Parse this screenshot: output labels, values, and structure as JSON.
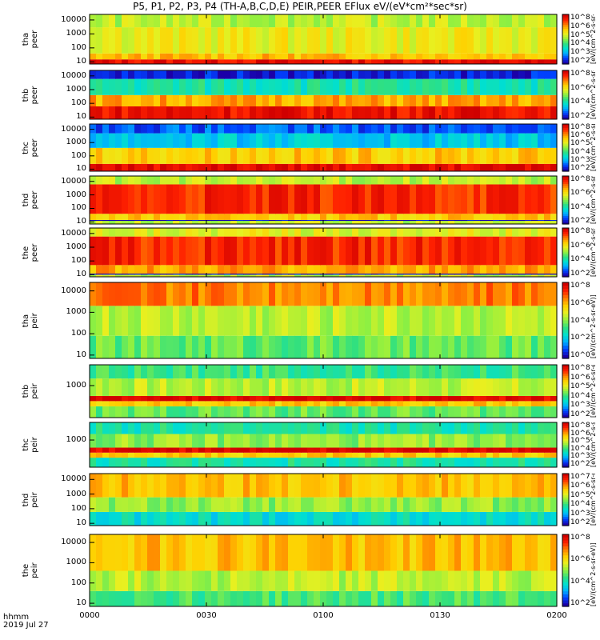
{
  "title": "P5, P1, P2, P3, P4 (TH-A,B,C,D,E) PEIR,PEER EFlux eV/(eV*cm²*sec*sr)",
  "time_axis": {
    "label": "hhmm",
    "date": "2019 Jul 27",
    "ticks": [
      "0000",
      "0030",
      "0100",
      "0130",
      "0200"
    ]
  },
  "colorbar_unit_label": "[eV/(cm^2-s-sr-eV)]",
  "colors": {
    "colormap": [
      "#1b00a8",
      "#0040ff",
      "#00b0ff",
      "#00e0d0",
      "#30e080",
      "#90f040",
      "#e8f020",
      "#ffd000",
      "#ff8000",
      "#ff2000",
      "#d00000"
    ]
  },
  "chart_data": [
    {
      "type": "heatmap",
      "probe": "tha",
      "species": "peer",
      "ylabel_line1": "tha",
      "ylabel_line2": "peer",
      "yticks": [
        "10",
        "100",
        "1000",
        "10000"
      ],
      "ylim_eV": [
        7,
        25000
      ],
      "y_scale": "log",
      "colorbar_ticks": [
        "10^8",
        "10^6",
        "10^5",
        "10^4",
        "10^3",
        "10^2"
      ],
      "description_bands_eV": [
        {
          "from": 7,
          "to": 15,
          "level": 0.95
        },
        {
          "from": 15,
          "to": 40,
          "level": 0.72
        },
        {
          "from": 40,
          "to": 3000,
          "level": 0.62
        },
        {
          "from": 3000,
          "to": 25000,
          "level": 0.55
        }
      ]
    },
    {
      "type": "heatmap",
      "probe": "thb",
      "species": "peer",
      "ylabel_line1": "thb",
      "ylabel_line2": "peer",
      "yticks": [
        "10",
        "100",
        "1000",
        "10000"
      ],
      "ylim_eV": [
        7,
        25000
      ],
      "y_scale": "log",
      "colorbar_ticks": [
        "10^8",
        "10^6",
        "10^4",
        "10^2"
      ],
      "description_bands_eV": [
        {
          "from": 7,
          "to": 60,
          "level": 0.95
        },
        {
          "from": 60,
          "to": 400,
          "level": 0.75
        },
        {
          "from": 400,
          "to": 6000,
          "level": 0.35
        },
        {
          "from": 6000,
          "to": 25000,
          "level": 0.05
        }
      ]
    },
    {
      "type": "heatmap",
      "probe": "thc",
      "species": "peer",
      "ylabel_line1": "thc",
      "ylabel_line2": "peer",
      "yticks": [
        "10",
        "100",
        "1000",
        "10000"
      ],
      "ylim_eV": [
        7,
        25000
      ],
      "y_scale": "log",
      "colorbar_ticks": [
        "10^8",
        "10^6",
        "10^5",
        "10^4",
        "10^3",
        "10^2"
      ],
      "description_bands_eV": [
        {
          "from": 7,
          "to": 25,
          "level": 0.97
        },
        {
          "from": 25,
          "to": 400,
          "level": 0.7
        },
        {
          "from": 400,
          "to": 5000,
          "level": 0.25
        },
        {
          "from": 5000,
          "to": 25000,
          "level": 0.12
        }
      ]
    },
    {
      "type": "heatmap",
      "probe": "thd",
      "species": "peer",
      "ylabel_line1": "thd",
      "ylabel_line2": "peer",
      "yticks": [
        "10",
        "100",
        "1000",
        "10000"
      ],
      "ylim_eV": [
        7,
        25000
      ],
      "y_scale": "log",
      "colorbar_ticks": [
        "10^8",
        "10^6",
        "10^4",
        "10^2"
      ],
      "description_bands_eV": [
        {
          "from": 7,
          "to": 12,
          "level": 0.55
        },
        {
          "from": 12,
          "to": 14,
          "level": 0.0
        },
        {
          "from": 14,
          "to": 40,
          "level": 0.7
        },
        {
          "from": 40,
          "to": 6000,
          "level": 0.9
        },
        {
          "from": 6000,
          "to": 25000,
          "level": 0.55
        }
      ]
    },
    {
      "type": "heatmap",
      "probe": "the",
      "species": "peer",
      "ylabel_line1": "the",
      "ylabel_line2": "peer",
      "yticks": [
        "10",
        "100",
        "1000",
        "10000"
      ],
      "ylim_eV": [
        7,
        25000
      ],
      "y_scale": "log",
      "colorbar_ticks": [
        "10^8",
        "10^6",
        "10^4",
        "10^2"
      ],
      "description_bands_eV": [
        {
          "from": 7,
          "to": 10,
          "level": 0.55
        },
        {
          "from": 10,
          "to": 12,
          "level": 0.0
        },
        {
          "from": 12,
          "to": 50,
          "level": 0.75
        },
        {
          "from": 50,
          "to": 6000,
          "level": 0.9
        },
        {
          "from": 6000,
          "to": 25000,
          "level": 0.6
        }
      ]
    },
    {
      "type": "heatmap",
      "probe": "tha",
      "species": "peir",
      "ylabel_line1": "tha",
      "ylabel_line2": "peir",
      "yticks": [
        "10",
        "100",
        "1000",
        "10000"
      ],
      "ylim_eV": [
        7,
        25000
      ],
      "y_scale": "log",
      "colorbar_ticks": [
        "10^8",
        "10^6",
        "10^4",
        "10^2",
        "10^0"
      ],
      "description_bands_eV": [
        {
          "from": 7,
          "to": 80,
          "level": 0.45
        },
        {
          "from": 80,
          "to": 2000,
          "level": 0.55
        },
        {
          "from": 2000,
          "to": 25000,
          "level": 0.8
        }
      ]
    },
    {
      "type": "heatmap",
      "probe": "thb",
      "species": "peir",
      "ylabel_line1": "thb",
      "ylabel_line2": "peir",
      "yticks": [
        "1000"
      ],
      "ylim_eV": [
        7,
        25000
      ],
      "y_scale": "log",
      "colorbar_ticks": [
        "10^8",
        "10^6",
        "10^5",
        "10^4",
        "10^3",
        "10^2"
      ],
      "description_bands_eV": [
        {
          "from": 7,
          "to": 40,
          "level": 0.45
        },
        {
          "from": 40,
          "to": 90,
          "level": 0.7
        },
        {
          "from": 90,
          "to": 200,
          "level": 0.98
        },
        {
          "from": 200,
          "to": 3000,
          "level": 0.55
        },
        {
          "from": 3000,
          "to": 25000,
          "level": 0.4
        }
      ]
    },
    {
      "type": "heatmap",
      "probe": "thc",
      "species": "peir",
      "ylabel_line1": "thc",
      "ylabel_line2": "peir",
      "yticks": [
        "1000"
      ],
      "ylim_eV": [
        7,
        25000
      ],
      "y_scale": "log",
      "colorbar_ticks": [
        "10^8",
        "10^6",
        "10^5",
        "10^4",
        "10^3",
        "10^2"
      ],
      "description_bands_eV": [
        {
          "from": 7,
          "to": 40,
          "level": 0.35
        },
        {
          "from": 40,
          "to": 100,
          "level": 0.7
        },
        {
          "from": 100,
          "to": 250,
          "level": 0.98
        },
        {
          "from": 250,
          "to": 3000,
          "level": 0.5
        },
        {
          "from": 3000,
          "to": 25000,
          "level": 0.35
        }
      ]
    },
    {
      "type": "heatmap",
      "probe": "thd",
      "species": "peir",
      "ylabel_line1": "thd",
      "ylabel_line2": "peir",
      "yticks": [
        "10",
        "100",
        "1000",
        "10000"
      ],
      "ylim_eV": [
        7,
        25000
      ],
      "y_scale": "log",
      "colorbar_ticks": [
        "10^7",
        "10^6",
        "10^5",
        "10^4",
        "10^3",
        "10^2"
      ],
      "description_bands_eV": [
        {
          "from": 7,
          "to": 60,
          "level": 0.3
        },
        {
          "from": 60,
          "to": 600,
          "level": 0.5
        },
        {
          "from": 600,
          "to": 25000,
          "level": 0.72
        }
      ]
    },
    {
      "type": "heatmap",
      "probe": "the",
      "species": "peir",
      "ylabel_line1": "the",
      "ylabel_line2": "peir",
      "yticks": [
        "10",
        "100",
        "1000",
        "10000"
      ],
      "ylim_eV": [
        7,
        25000
      ],
      "y_scale": "log",
      "colorbar_ticks": [
        "10^8",
        "10^6",
        "10^4",
        "10^2"
      ],
      "description_bands_eV": [
        {
          "from": 7,
          "to": 40,
          "level": 0.42
        },
        {
          "from": 40,
          "to": 400,
          "level": 0.55
        },
        {
          "from": 400,
          "to": 25000,
          "level": 0.72
        }
      ]
    }
  ]
}
